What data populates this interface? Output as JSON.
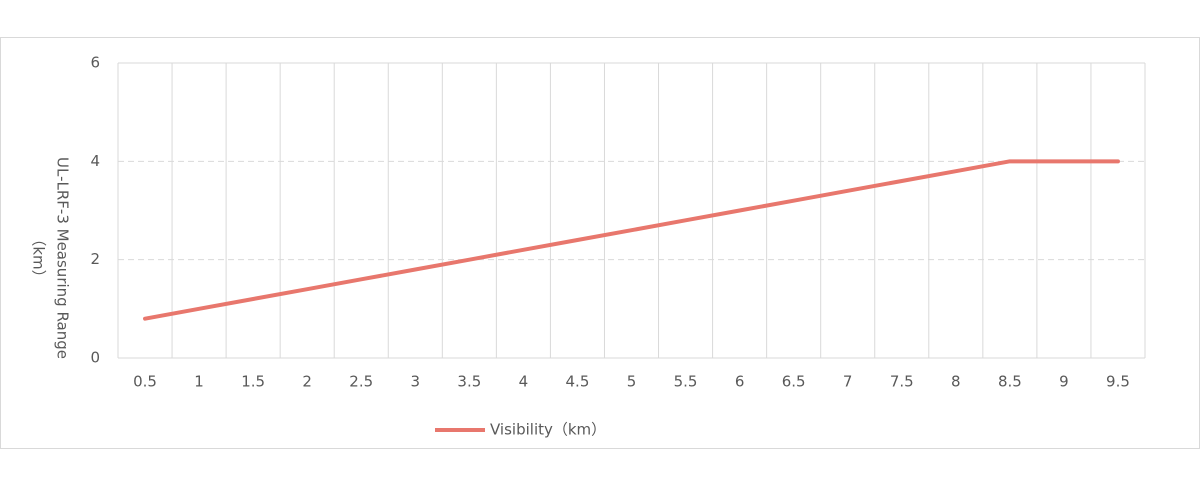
{
  "chart_data": {
    "type": "line",
    "y_label": [
      "UL-LRF-3  Measuring Range",
      "（km）"
    ],
    "categories": [
      "0.5",
      "1",
      "1.5",
      "2",
      "2.5",
      "3",
      "3.5",
      "4",
      "4.5",
      "5",
      "5.5",
      "6",
      "6.5",
      "7",
      "7.5",
      "8",
      "8.5",
      "9",
      "9.5"
    ],
    "series": [
      {
        "name": "Visibility（km）",
        "color": "#e8776d",
        "values": [
          0.8,
          1.0,
          1.2,
          1.4,
          1.6,
          1.8,
          2.0,
          2.2,
          2.4,
          2.6,
          2.8,
          3.0,
          3.2,
          3.4,
          3.6,
          3.8,
          4.0,
          4.0,
          4.0
        ]
      }
    ],
    "ylim": [
      0,
      6
    ],
    "yticks": [
      0,
      2,
      4,
      6
    ],
    "grid": true,
    "legend": "bottom"
  }
}
